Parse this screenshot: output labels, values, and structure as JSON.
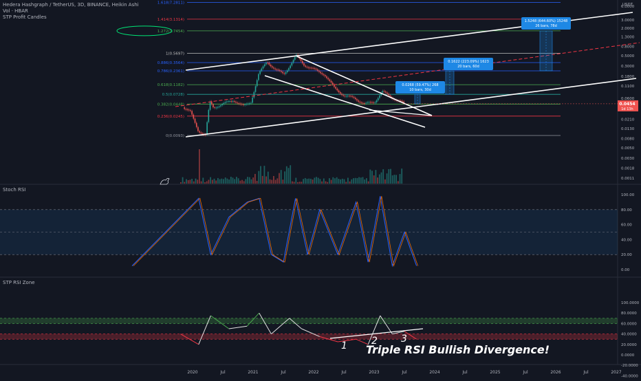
{
  "header": {
    "title": "Hedera Hashgraph / TetherUS, 3D, BINANCE, Heikin Ashi",
    "indicator1": "Vol · HBAR",
    "indicator2": "STP Profit Candles"
  },
  "colors": {
    "background": "#131722",
    "fib_blue": "#2962ff",
    "fib_red": "#f23645",
    "fib_green": "#4caf50",
    "fib_teal": "#26a69a",
    "candle_up": "#26a69a",
    "candle_down": "#ef5350",
    "measure_box": "#1e88e5",
    "rsi_line": "#7e57c2",
    "trend_white": "#ffffff"
  },
  "chart_data": [
    {
      "type": "candlestick",
      "title": "Hedera Hashgraph / TetherUS, 3D, BINANCE, Heikin Ashi",
      "y_scale": "log",
      "y_unit": "USDT",
      "y_ticks": [
        "6.0000",
        "3.0000",
        "2.0000",
        "1.3000",
        "0.8000",
        "0.5000",
        "0.3000",
        "0.1800",
        "0.1100",
        "0.0600",
        "0.0340",
        "0.0210",
        "0.0130",
        "0.0080",
        "0.0050",
        "0.0030",
        "0.0018",
        "0.0011"
      ],
      "x_ticks": [
        "2020",
        "Jul",
        "2021",
        "Jul",
        "2022",
        "Jul",
        "2023",
        "Jul",
        "2024",
        "Jul",
        "2025",
        "Jul",
        "2026",
        "Jul",
        "2027"
      ],
      "fib_levels": [
        {
          "label": "1.618(7.2811)",
          "value": 7.2811
        },
        {
          "label": "1.414(3.1314)",
          "value": 3.1314
        },
        {
          "label": "1.272(1.7454)",
          "value": 1.7454
        },
        {
          "label": "1(0.5697)",
          "value": 0.5697
        },
        {
          "label": "0.886(0.3564)",
          "value": 0.3564
        },
        {
          "label": "0.786(0.2361)",
          "value": 0.2361
        },
        {
          "label": "0.618(0.1182)",
          "value": 0.1182
        },
        {
          "label": "0.5(0.0728)",
          "value": 0.0728
        },
        {
          "label": "0.382(0.0448)",
          "value": 0.0448
        },
        {
          "label": "0.236(0.0245)",
          "value": 0.0245
        },
        {
          "label": "0(0.0093)",
          "value": 0.0093
        }
      ],
      "price_path": [
        [
          "2019-11-01",
          0.038
        ],
        [
          "2019-12-15",
          0.03
        ],
        [
          "2020-02-01",
          0.012
        ],
        [
          "2020-03-15",
          0.0093
        ],
        [
          "2020-04-10",
          0.05
        ],
        [
          "2020-05-01",
          0.038
        ],
        [
          "2020-07-01",
          0.045
        ],
        [
          "2020-09-01",
          0.055
        ],
        [
          "2020-11-01",
          0.04
        ],
        [
          "2020-12-15",
          0.05
        ],
        [
          "2021-02-01",
          0.2
        ],
        [
          "2021-03-20",
          0.38
        ],
        [
          "2021-05-10",
          0.25
        ],
        [
          "2021-07-01",
          0.2
        ],
        [
          "2021-09-15",
          0.5
        ],
        [
          "2021-11-01",
          0.32
        ],
        [
          "2022-01-01",
          0.25
        ],
        [
          "2022-03-01",
          0.2
        ],
        [
          "2022-05-01",
          0.1
        ],
        [
          "2022-07-01",
          0.068
        ],
        [
          "2022-09-01",
          0.06
        ],
        [
          "2022-11-01",
          0.045
        ],
        [
          "2023-01-01",
          0.05
        ],
        [
          "2023-02-15",
          0.085
        ],
        [
          "2023-04-01",
          0.065
        ],
        [
          "2023-06-01",
          0.052
        ],
        [
          "2023-06-25",
          0.0454
        ]
      ],
      "last_price": "0.0454",
      "countdown": "1d 13h",
      "annotations": [
        {
          "text1": "0.0268 (59.47%) 268",
          "text2": "10 bars, 30d"
        },
        {
          "text1": "0.1622 (223.09%) 1623",
          "text2": "20 bars, 60d"
        },
        {
          "text1": "1.5248 (644.60%) 15248",
          "text2": "26 bars, 78d"
        }
      ]
    },
    {
      "type": "line",
      "title": "Stoch RSI",
      "y_ticks": [
        "100.00",
        "80.00",
        "60.00",
        "40.00",
        "20.00",
        "0.00"
      ],
      "bands": [
        20,
        80
      ],
      "series_k": [
        [
          2019,
          5
        ],
        [
          2020.1,
          95
        ],
        [
          2020.3,
          20
        ],
        [
          2020.6,
          70
        ],
        [
          2020.9,
          90
        ],
        [
          2021.1,
          95
        ],
        [
          2021.3,
          20
        ],
        [
          2021.5,
          10
        ],
        [
          2021.7,
          95
        ],
        [
          2021.9,
          20
        ],
        [
          2022.1,
          80
        ],
        [
          2022.4,
          20
        ],
        [
          2022.7,
          90
        ],
        [
          2022.9,
          10
        ],
        [
          2023.1,
          98
        ],
        [
          2023.3,
          5
        ],
        [
          2023.5,
          50
        ],
        [
          2023.7,
          5
        ]
      ]
    },
    {
      "type": "line",
      "title": "STP RSI Zone",
      "y_ticks": [
        "100.0000",
        "80.0000",
        "60.0000",
        "40.0000",
        "20.0000",
        "0.0000",
        "-20.0000",
        "-40.0000"
      ],
      "bands": [
        30,
        40,
        60,
        70
      ],
      "series": [
        [
          2019.8,
          40
        ],
        [
          2020.1,
          20
        ],
        [
          2020.3,
          75
        ],
        [
          2020.6,
          50
        ],
        [
          2020.9,
          55
        ],
        [
          2021.1,
          80
        ],
        [
          2021.3,
          40
        ],
        [
          2021.6,
          70
        ],
        [
          2021.8,
          50
        ],
        [
          2022.1,
          35
        ],
        [
          2022.4,
          25
        ],
        [
          2022.7,
          30
        ],
        [
          2022.9,
          20
        ],
        [
          2023.1,
          75
        ],
        [
          2023.3,
          40
        ],
        [
          2023.5,
          45
        ],
        [
          2023.7,
          30
        ]
      ],
      "divergence_labels": [
        "1",
        "2",
        "3"
      ],
      "headline": "Triple RSI Bullish Divergence!"
    }
  ]
}
